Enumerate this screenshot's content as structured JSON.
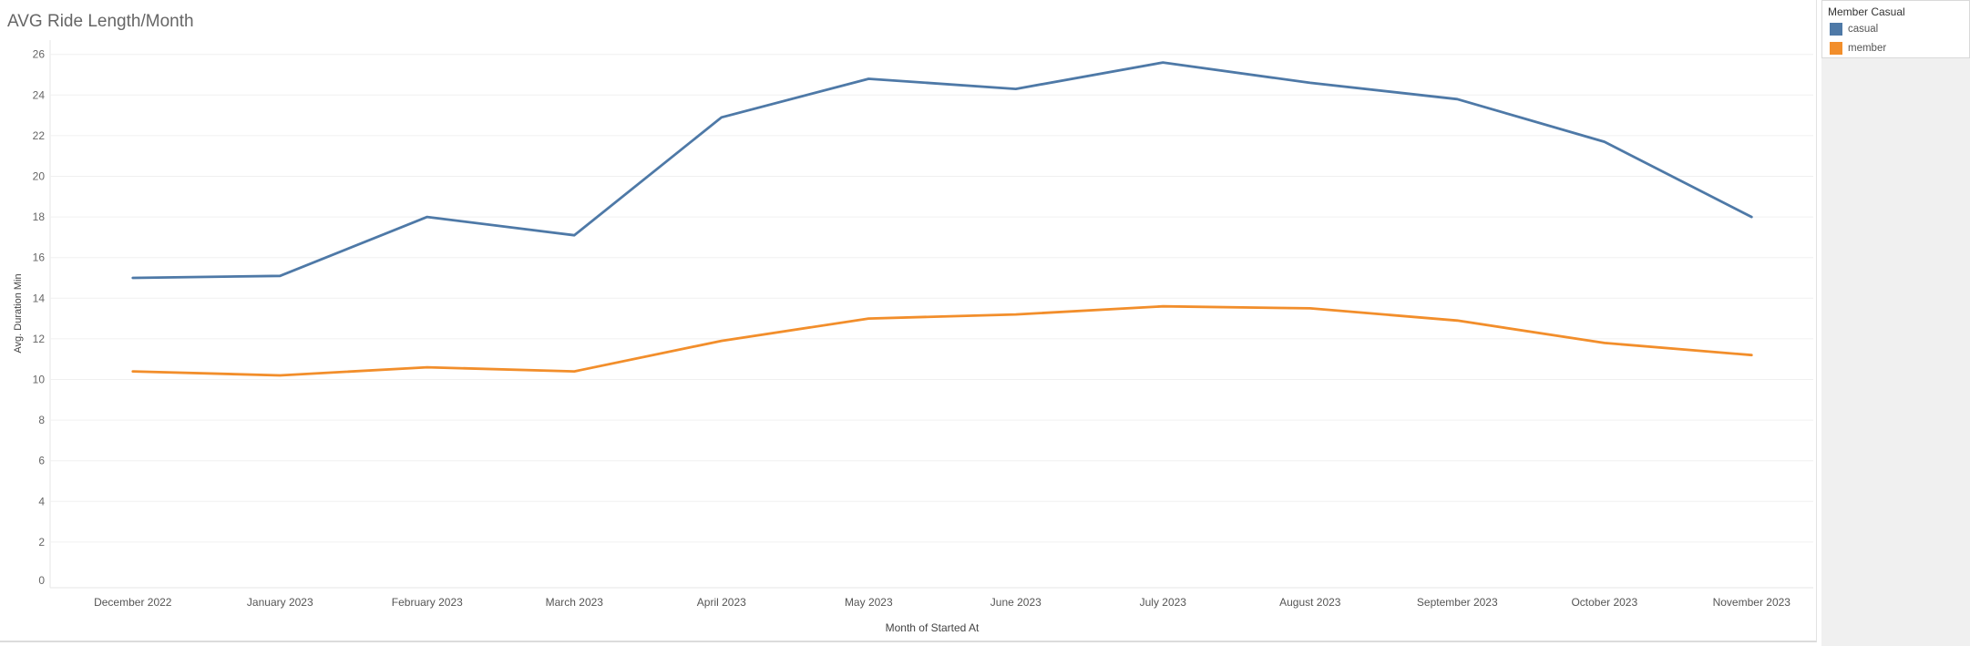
{
  "title": "AVG Ride Length/Month",
  "legend": {
    "title": "Member Casual",
    "items": [
      {
        "label": "casual",
        "color": "#4e79a7"
      },
      {
        "label": "member",
        "color": "#f28e2b"
      }
    ]
  },
  "chart_data": {
    "type": "line",
    "title": "AVG Ride Length/Month",
    "xlabel": "Month of Started At",
    "ylabel": "Avg. Duration Min",
    "categories": [
      "December 2022",
      "January 2023",
      "February 2023",
      "March 2023",
      "April 2023",
      "May 2023",
      "June 2023",
      "July 2023",
      "August 2023",
      "September 2023",
      "October 2023",
      "November 2023"
    ],
    "series": [
      {
        "name": "casual",
        "color": "#4e79a7",
        "values": [
          15.0,
          15.1,
          18.0,
          17.1,
          22.9,
          24.8,
          24.3,
          25.6,
          24.6,
          23.8,
          21.7,
          18.0
        ]
      },
      {
        "name": "member",
        "color": "#f28e2b",
        "values": [
          10.4,
          10.2,
          10.6,
          10.4,
          11.9,
          13.0,
          13.2,
          13.6,
          13.5,
          12.9,
          11.8,
          11.2
        ]
      }
    ],
    "yticks": [
      "0",
      "2",
      "4",
      "6",
      "8",
      "10",
      "12",
      "14",
      "16",
      "18",
      "20",
      "22",
      "24",
      "26"
    ],
    "ylim": [
      0,
      26
    ],
    "grid": true,
    "legend_position": "top-right"
  }
}
